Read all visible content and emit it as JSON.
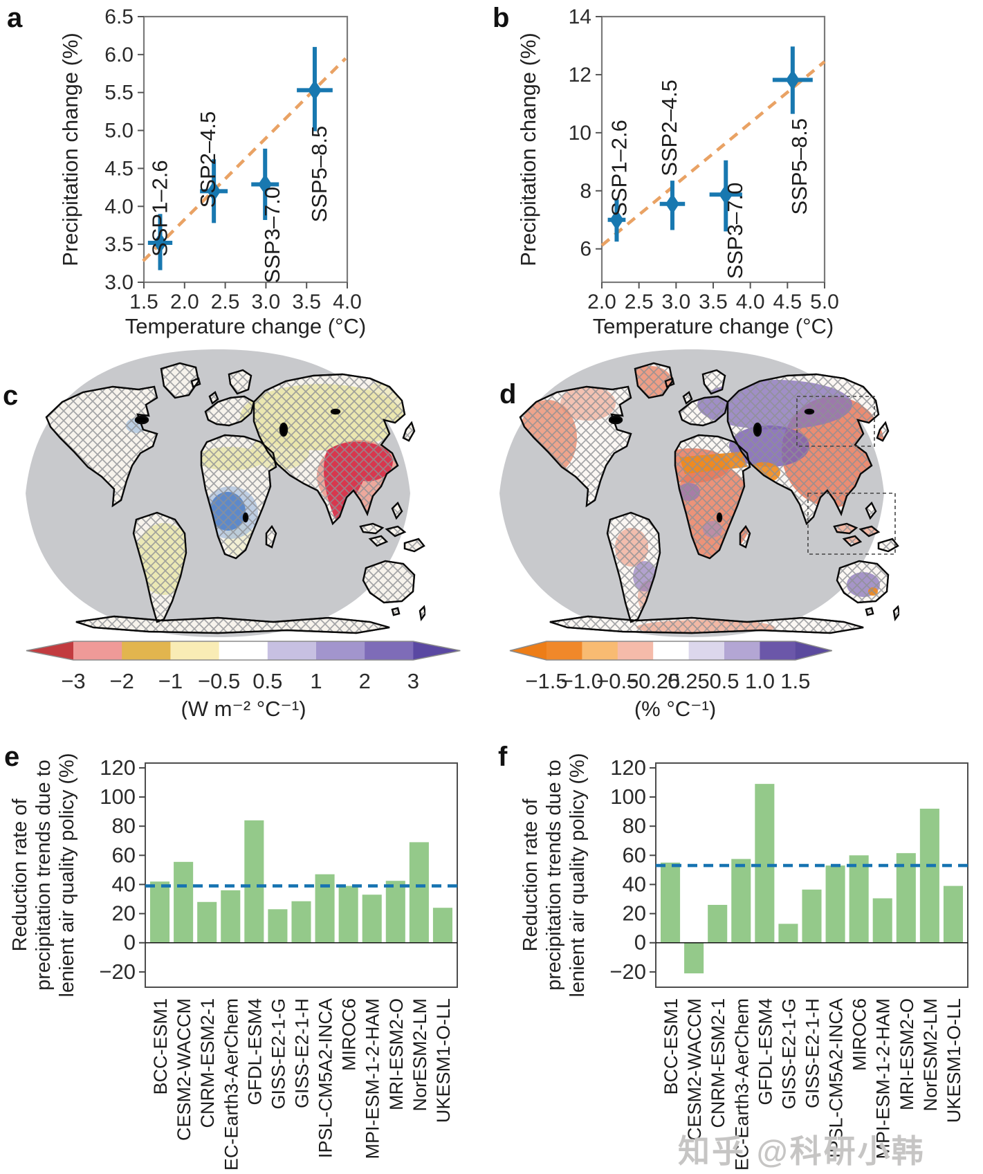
{
  "figure": {
    "panel_letters": {
      "a": "a",
      "b": "b",
      "c": "c",
      "d": "d",
      "e": "e",
      "f": "f"
    },
    "watermark": "知乎 @科研小韩"
  },
  "chart_data": [
    {
      "id": "a",
      "type": "scatter",
      "xlabel": "Temperature change (°C)",
      "ylabel": "Precipitation change (%)",
      "xlim": [
        1.5,
        4.0
      ],
      "ylim": [
        3.0,
        6.5
      ],
      "xticks": [
        1.5,
        2.0,
        2.5,
        3.0,
        3.5,
        4.0
      ],
      "xtick_labels": [
        "1.5",
        "2.0",
        "2.5",
        "3.0",
        "3.5",
        "4.0"
      ],
      "yticks": [
        3.0,
        3.5,
        4.0,
        4.5,
        5.0,
        5.5,
        6.0,
        6.5
      ],
      "ytick_labels": [
        "3.0",
        "3.5",
        "4.0",
        "4.5",
        "5.0",
        "5.5",
        "6.0",
        "6.5"
      ],
      "grid": false,
      "trend_line": {
        "style": "dashed",
        "color": "#e9a264",
        "x": [
          1.49,
          3.98
        ],
        "y": [
          3.28,
          5.95
        ]
      },
      "marker_color": "#1878b0",
      "points": [
        {
          "label": "SSP1–2.6",
          "x": 1.7,
          "y": 3.52,
          "y_err": [
            3.16,
            3.9
          ],
          "x_err": [
            1.55,
            1.85
          ]
        },
        {
          "label": "SSP2–4.5",
          "x": 2.36,
          "y": 4.2,
          "y_err": [
            3.78,
            4.62
          ],
          "x_err": [
            2.19,
            2.53
          ]
        },
        {
          "label": "SSP3–7.0",
          "x": 2.99,
          "y": 4.29,
          "y_err": [
            3.82,
            4.76
          ],
          "x_err": [
            2.82,
            3.16
          ]
        },
        {
          "label": "SSP5–8.5",
          "x": 3.6,
          "y": 5.53,
          "y_err": [
            4.99,
            6.1
          ],
          "x_err": [
            3.38,
            3.82
          ]
        }
      ]
    },
    {
      "id": "b",
      "type": "scatter",
      "xlabel": "Temperature change (°C)",
      "ylabel": "Precipitation change (%)",
      "xlim": [
        2.0,
        5.0
      ],
      "ylim": [
        4.85,
        14
      ],
      "xticks": [
        2.0,
        2.5,
        3.0,
        3.5,
        4.0,
        4.5,
        5.0
      ],
      "xtick_labels": [
        "2.0",
        "2.5",
        "3.0",
        "3.5",
        "4.0",
        "4.5",
        "5.0"
      ],
      "yticks": [
        6,
        8,
        10,
        12,
        14
      ],
      "ytick_labels": [
        "6",
        "8",
        "10",
        "12",
        "14"
      ],
      "grid": false,
      "trend_line": {
        "style": "dashed",
        "color": "#e9a264",
        "x": [
          2.0,
          5.0
        ],
        "y": [
          6.12,
          12.45
        ]
      },
      "marker_color": "#1878b0",
      "points": [
        {
          "label": "SSP1–2.6",
          "x": 2.2,
          "y": 7.0,
          "y_err": [
            6.25,
            7.7
          ],
          "x_err": [
            2.08,
            2.32
          ]
        },
        {
          "label": "SSP2–4.5",
          "x": 2.95,
          "y": 7.55,
          "y_err": [
            6.65,
            8.35
          ],
          "x_err": [
            2.78,
            3.12
          ]
        },
        {
          "label": "SSP3–7.0",
          "x": 3.67,
          "y": 7.87,
          "y_err": [
            6.6,
            9.05
          ],
          "x_err": [
            3.45,
            3.89
          ]
        },
        {
          "label": "SSP5–8.5",
          "x": 4.57,
          "y": 11.82,
          "y_err": [
            10.65,
            12.97
          ],
          "x_err": [
            4.3,
            4.84
          ]
        }
      ]
    },
    {
      "id": "e",
      "type": "bar",
      "ylabel_lines": [
        "Reduction rate of",
        "precipitation trends due to",
        "lenient air quality policy (%)"
      ],
      "categories": [
        "BCC-ESM1",
        "CESM2-WACCM",
        "CNRM-ESM2-1",
        "EC-Earth3-AerChem",
        "GFDL-ESM4",
        "GISS-E2-1-G",
        "GISS-E2-1-H",
        "IPSL-CM5A2-INCA",
        "MIROC6",
        "MPI-ESM-1-2-HAM",
        "MRI-ESM2-O",
        "NorESM2-LM",
        "UKESM1-O-LL"
      ],
      "values": [
        42,
        55.5,
        28,
        36,
        84,
        23,
        28.5,
        47,
        39,
        33,
        42.5,
        69,
        24
      ],
      "mean_line": 39,
      "bar_color": "#94c98a",
      "mean_line_color": "#1673b1",
      "ylim": [
        -30.5,
        123.3
      ],
      "yticks": [
        -20,
        0,
        20,
        40,
        60,
        80,
        100,
        120
      ],
      "ytick_labels": [
        "−20",
        "0",
        "20",
        "40",
        "60",
        "80",
        "100",
        "120"
      ]
    },
    {
      "id": "f",
      "type": "bar",
      "ylabel_lines": [
        "Reduction rate of",
        "precipitation trends due to",
        "lenient air quality policy (%)"
      ],
      "categories": [
        "BCC-ESM1",
        "CESM2-WACCM",
        "CNRM-ESM2-1",
        "EC-Earth3-AerChem",
        "GFDL-ESM4",
        "GISS-E2-1-G",
        "GISS-E2-1-H",
        "IPSL-CM5A2-INCA",
        "MIROC6",
        "MPI-ESM-1-2-HAM",
        "MRI-ESM2-O",
        "NorESM2-LM",
        "UKESM1-O-LL"
      ],
      "values": [
        55,
        -21,
        26,
        57.5,
        109,
        13,
        36.5,
        53,
        60,
        30.5,
        61.5,
        92,
        39
      ],
      "mean_line": 53,
      "bar_color": "#94c98a",
      "mean_line_color": "#1673b1",
      "ylim": [
        -30.5,
        123.3
      ],
      "yticks": [
        -20,
        0,
        20,
        40,
        60,
        80,
        100,
        120
      ],
      "ytick_labels": [
        "−20",
        "0",
        "20",
        "40",
        "60",
        "80",
        "100",
        "120"
      ]
    }
  ],
  "maps": {
    "c": {
      "colorbar": {
        "unit": "(W m⁻² °C⁻¹)",
        "tick_labels": [
          "−3",
          "−2",
          "−1",
          "−0.5",
          "0.5",
          "1",
          "2",
          "3"
        ],
        "arrow_left_color": "#c23b3f",
        "segment_colors": [
          "#ef9a98",
          "#e2b54e",
          "#f9ecb5",
          "#ffffff",
          "#c7c0e2",
          "#a295cd",
          "#7e6cb8"
        ],
        "arrow_right_color": "#5a48a2"
      }
    },
    "d": {
      "colorbar": {
        "unit": "(% °C⁻¹)",
        "tick_labels": [
          "−1.5",
          "−1.0",
          "−0.5",
          "−0.25",
          "0.25",
          "0.5",
          "1.0",
          "1.5"
        ],
        "arrow_left_color": "#ed7d17",
        "segment_colors": [
          "#f0882a",
          "#f8bb72",
          "#f5bbaa",
          "#ffffff",
          "#dcd7ec",
          "#b3a6d4",
          "#6b57a9"
        ],
        "arrow_right_color": "#5b4a9e"
      }
    }
  }
}
